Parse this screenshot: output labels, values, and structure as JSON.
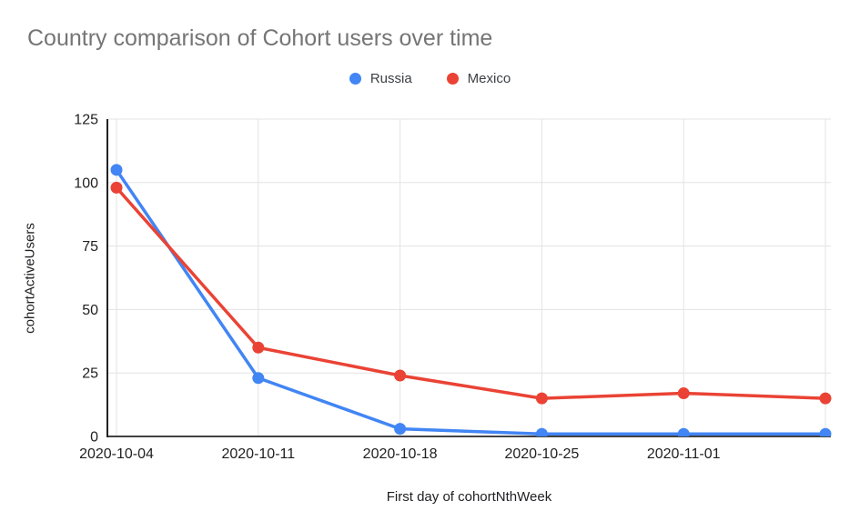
{
  "chart_data": {
    "type": "line",
    "title": "Country comparison of Cohort users over time",
    "xlabel": "First day of cohortNthWeek",
    "ylabel": "cohortActiveUsers",
    "categories": [
      "2020-10-04",
      "2020-10-11",
      "2020-10-18",
      "2020-10-25",
      "2020-11-01",
      ""
    ],
    "series": [
      {
        "name": "Russia",
        "color": "#4285F4",
        "values": [
          105,
          23,
          3,
          1,
          1,
          1
        ]
      },
      {
        "name": "Mexico",
        "color": "#EA4335",
        "values": [
          98,
          35,
          24,
          15,
          17,
          15
        ]
      }
    ],
    "y_ticks": [
      0,
      25,
      50,
      75,
      100,
      125
    ],
    "ylim": [
      0,
      125
    ],
    "grid": true,
    "legend_position": "top"
  },
  "style": {
    "title_color": "#757575",
    "tick_label_color": "#212121",
    "axis_title_color": "#202124",
    "legend_label_color": "#3c4043",
    "gridline_color": "#e3e3e3",
    "y_axis_line_color": "#212121",
    "baseline_color": "#424242",
    "background": "#ffffff"
  }
}
